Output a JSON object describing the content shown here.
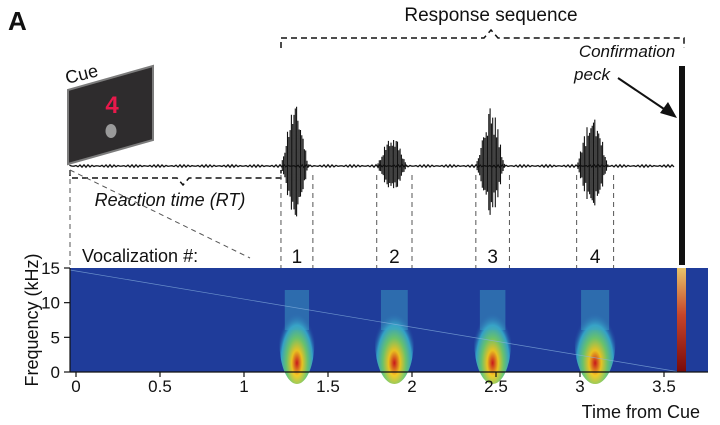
{
  "panel_label": "A",
  "response_sequence_label": "Response sequence",
  "cue": {
    "label": "Cue",
    "digit": "4",
    "digit_color": "#e8194b",
    "screen_color": "#2e2c2d",
    "border_color": "#7c7c7c"
  },
  "confirmation_label_line1": "Confirmation",
  "confirmation_label_line2": "peck",
  "reaction_time_label": "Reaction time (RT)",
  "vocalization_label": "Vocalization #:",
  "vocalizations": [
    {
      "number": "1",
      "start": 1.22,
      "end": 1.41
    },
    {
      "number": "2",
      "start": 1.79,
      "end": 2.0
    },
    {
      "number": "3",
      "start": 2.38,
      "end": 2.58
    },
    {
      "number": "4",
      "start": 2.98,
      "end": 3.2
    }
  ],
  "confirmation_peck_time": 3.56,
  "spectrogram": {
    "ylabel": "Frequency (kHz)",
    "xlabel": "Time from Cue",
    "yticks": [
      "0",
      "5",
      "10",
      "15"
    ],
    "xticks": [
      "0",
      "0.5",
      "1",
      "1.5",
      "2",
      "2.5",
      "3",
      "3.5"
    ],
    "background_color": "#1f3c9a"
  },
  "chart_data": {
    "type": "spectrogram",
    "title": "",
    "xlabel": "Time from Cue",
    "ylabel": "Frequency (kHz)",
    "xlim": [
      0,
      3.7
    ],
    "ylim": [
      0,
      15
    ],
    "x_tick_values": [
      0,
      0.5,
      1,
      1.5,
      2,
      2.5,
      3,
      3.5
    ],
    "y_tick_values": [
      0,
      5,
      10,
      15
    ],
    "vocalization_times": [
      [
        1.22,
        1.41
      ],
      [
        1.79,
        2.0
      ],
      [
        2.38,
        2.58
      ],
      [
        2.98,
        3.2
      ]
    ],
    "peck_time": 3.56
  }
}
